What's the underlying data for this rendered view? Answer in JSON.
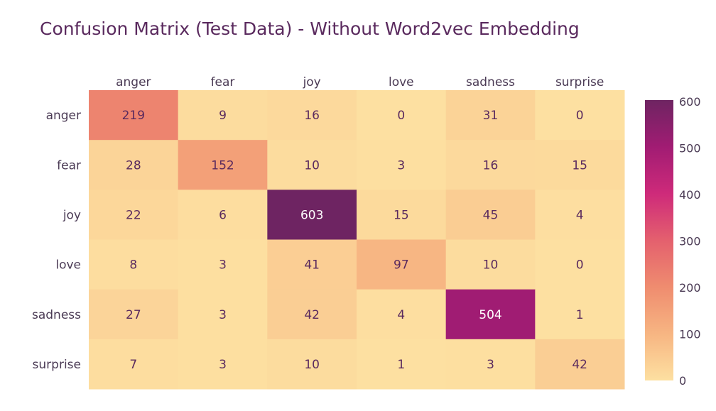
{
  "chart_data": {
    "type": "heatmap",
    "title": "Confusion Matrix (Test Data) - Without Word2vec Embedding",
    "x_categories": [
      "anger",
      "fear",
      "joy",
      "love",
      "sadness",
      "surprise"
    ],
    "y_categories": [
      "anger",
      "fear",
      "joy",
      "love",
      "sadness",
      "surprise"
    ],
    "values": [
      [
        219,
        9,
        16,
        0,
        31,
        0
      ],
      [
        28,
        152,
        10,
        3,
        16,
        15
      ],
      [
        22,
        6,
        603,
        15,
        45,
        4
      ],
      [
        8,
        3,
        41,
        97,
        10,
        0
      ],
      [
        27,
        3,
        42,
        4,
        504,
        1
      ],
      [
        7,
        3,
        10,
        1,
        3,
        42
      ]
    ],
    "colorscale": [
      "#fde0a1",
      "#f7b582",
      "#ef8c6f",
      "#e4606e",
      "#ce2a7a",
      "#a11c73",
      "#6e2462"
    ],
    "zmin": 0,
    "zmax": 603,
    "colorbar_ticks": [
      0,
      100,
      200,
      300,
      400,
      500,
      600
    ],
    "xlabel": "",
    "ylabel": "",
    "text_color": "#5a2a5e"
  }
}
